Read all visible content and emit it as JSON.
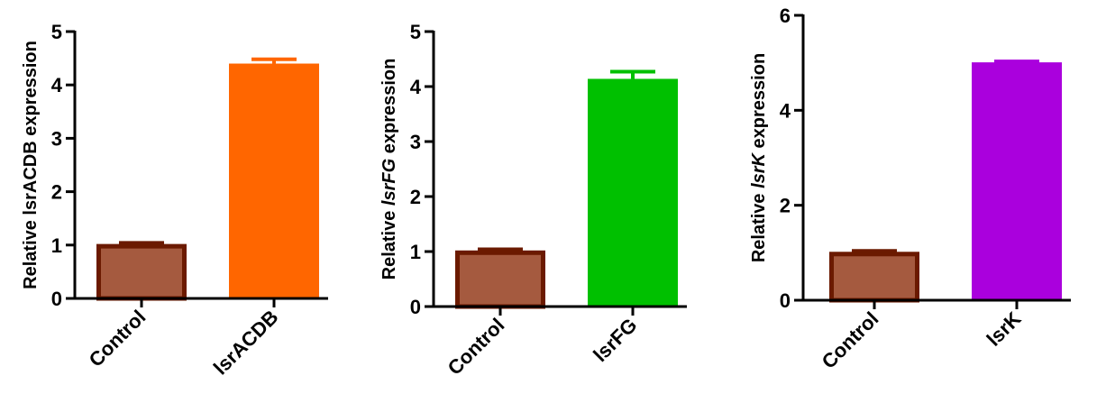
{
  "chart_data": [
    {
      "type": "bar",
      "categories": [
        "Control",
        "lsrACDB"
      ],
      "values": [
        1.02,
        4.4
      ],
      "errors": [
        0.02,
        0.08
      ],
      "ylabel": "Relative lsrACDB expression",
      "ylim": [
        0,
        5
      ],
      "yticks": [
        0,
        1,
        2,
        3,
        4,
        5
      ],
      "colors": [
        "#A55A3F",
        "#FF6600"
      ],
      "outline_colors": [
        "#6B1A00",
        "#FF6600"
      ],
      "grid": false
    },
    {
      "type": "bar",
      "categories": [
        "Control",
        "lsrFG"
      ],
      "values": [
        1.02,
        4.14
      ],
      "errors": [
        0.02,
        0.13
      ],
      "ylabel_prefix": "Relative ",
      "ylabel_gene": "lsrFG",
      "ylabel_suffix": " expression",
      "ylim": [
        0,
        5
      ],
      "yticks": [
        0,
        1,
        2,
        3,
        4,
        5
      ],
      "colors": [
        "#A55A3F",
        "#00C000"
      ],
      "outline_colors": [
        "#6B1A00",
        "#00C000"
      ],
      "grid": false
    },
    {
      "type": "bar",
      "categories": [
        "Control",
        "lsrK"
      ],
      "values": [
        1.02,
        5.01
      ],
      "errors": [
        0.02,
        0.02
      ],
      "ylabel_prefix": "Relative ",
      "ylabel_gene": "lsrK",
      "ylabel_suffix": " expression",
      "ylim": [
        0,
        6
      ],
      "yticks": [
        0,
        2,
        4,
        6
      ],
      "colors": [
        "#A55A3F",
        "#AA00DD"
      ],
      "outline_colors": [
        "#6B1A00",
        "#AA00DD"
      ],
      "grid": false
    }
  ]
}
